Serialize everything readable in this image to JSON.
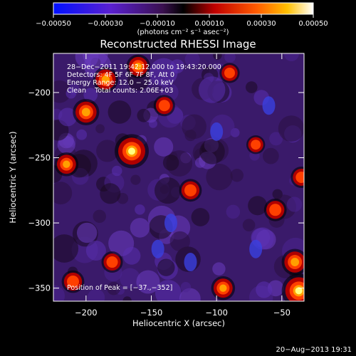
{
  "chart_data": {
    "type": "heatmap",
    "title": "Reconstructed RHESSI Image",
    "xlabel": "Heliocentric X (arcsec)",
    "ylabel": "Heliocentric Y (arcsec)",
    "xlim": [
      -225,
      -33
    ],
    "ylim": [
      -360,
      -170
    ],
    "x_ticks": [
      -200,
      -150,
      -100,
      -50
    ],
    "y_ticks": [
      -200,
      -250,
      -300,
      -350
    ],
    "x_tick_labels": [
      "−200",
      "−150",
      "−100",
      "−50"
    ],
    "y_tick_labels": [
      "−200",
      "−250",
      "−300",
      "−350"
    ],
    "colorbar": {
      "min": -0.0005,
      "max": 0.0005,
      "ticks": [
        -0.0005,
        -0.0003,
        -0.0001,
        0.0001,
        0.0003,
        0.0005
      ],
      "tick_labels": [
        "−0.00050",
        "−0.00030",
        "−0.00010",
        "0.00010",
        "0.00030",
        "0.00050"
      ],
      "unit_label": "(photons cm⁻² s⁻¹ asec⁻²)",
      "colors": [
        "#0010ff",
        "#6020c0",
        "#3a1060",
        "#000000",
        "#c00000",
        "#ff5000",
        "#ffb000",
        "#ffffff"
      ]
    },
    "annotations": [
      "28−Dec−2011 19:42:12.000 to 19:43:20.000",
      "Detectors: 4F 5F 6F 7F 8F, Att 0",
      "Energy Range: 12.0 − 25.0 keV",
      "Clean    Total counts: 2.06E+03"
    ],
    "peak_label": "Position of Peak = [−37.,−352]",
    "peak": {
      "x": -37,
      "y": -352
    },
    "bright_sources": [
      {
        "x": -165,
        "y": -245,
        "level": 1.0
      },
      {
        "x": -37,
        "y": -352,
        "level": 1.0
      },
      {
        "x": -200,
        "y": -215,
        "level": 0.7
      },
      {
        "x": -185,
        "y": -190,
        "level": 0.65
      },
      {
        "x": -160,
        "y": -180,
        "level": 0.6
      },
      {
        "x": -215,
        "y": -255,
        "level": 0.6
      },
      {
        "x": -210,
        "y": -345,
        "level": 0.55
      },
      {
        "x": -180,
        "y": -330,
        "level": 0.5
      },
      {
        "x": -95,
        "y": -350,
        "level": 0.6
      },
      {
        "x": -120,
        "y": -275,
        "level": 0.55
      },
      {
        "x": -55,
        "y": -290,
        "level": 0.55
      },
      {
        "x": -35,
        "y": -265,
        "level": 0.5
      },
      {
        "x": -90,
        "y": -185,
        "level": 0.45
      },
      {
        "x": -140,
        "y": -210,
        "level": 0.5
      },
      {
        "x": -70,
        "y": -240,
        "level": 0.4
      },
      {
        "x": -40,
        "y": -330,
        "level": 0.7
      }
    ]
  },
  "footer": {
    "timestamp": "20−Aug−2013 19:31"
  }
}
